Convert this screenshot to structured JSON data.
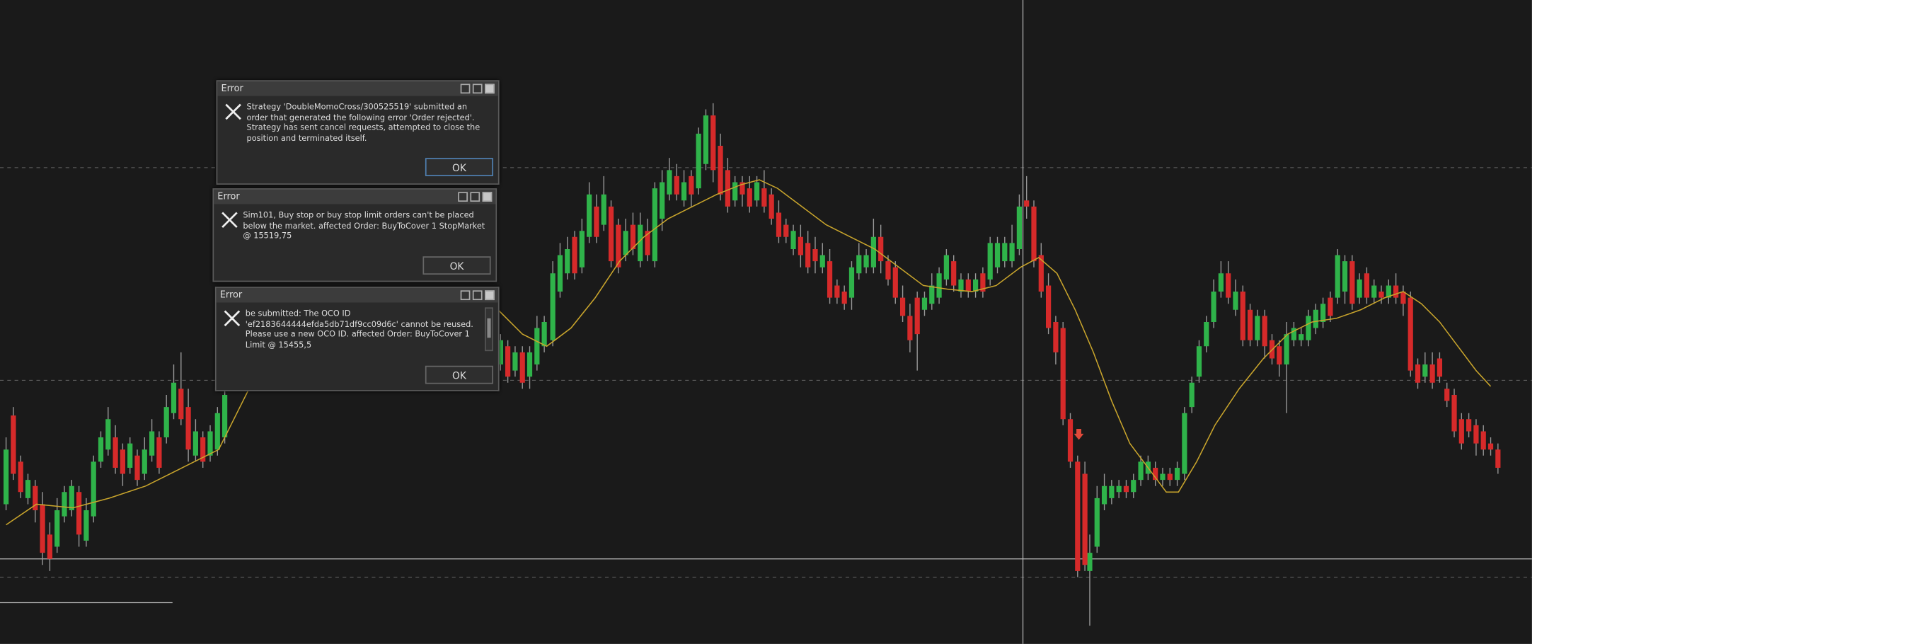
{
  "dialogs": [
    {
      "title": "Error",
      "message": "Strategy 'DoubleMomoCross/300525519' submitted an order that generated the following error 'Order rejected'. Strategy has sent cancel requests, attempted to close the position and terminated itself.",
      "button": "OK"
    },
    {
      "title": "Error",
      "message": "Sim101, Buy stop or buy stop limit orders can't be placed below the market. affected Order: BuyToCover 1 StopMarket @ 15519,75",
      "button": "OK"
    },
    {
      "title": "Error",
      "message": "be submitted: The OCO ID 'ef2183644444efda5db71df9cc09d6c' cannot be reused. Please use a new OCO ID. affected Order: BuyToCover 1 Limit @ 15455,5",
      "button": "OK"
    }
  ]
}
